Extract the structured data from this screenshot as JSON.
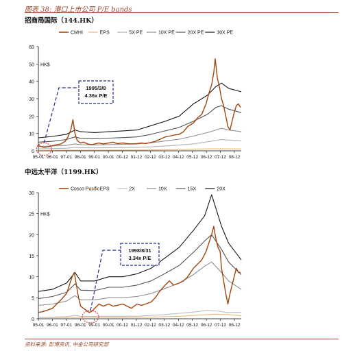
{
  "figure": {
    "title": "图表 38: 港口上市公司 P/E bands",
    "source": "资料来源: 彭博资讯, 中金公司研究部"
  },
  "chart_data": [
    {
      "type": "line",
      "heading": "招商局国际（144.HK）",
      "ylabel": "HK$",
      "ylim": [
        0,
        60
      ],
      "yticks": [
        0,
        10,
        20,
        30,
        40,
        50,
        60
      ],
      "xticks": [
        "95-01",
        "96-01",
        "97-01",
        "98-01",
        "99-01",
        "00-01",
        "00-12",
        "01-12",
        "02-12",
        "03-12",
        "04-12",
        "05-12",
        "06-12",
        "07-12",
        "08-12"
      ],
      "xrange": [
        1995.0,
        2009.4
      ],
      "legend": [
        "CMHI",
        "EPS",
        "5X PE",
        "10X PE",
        "20X PE",
        "30X PE"
      ],
      "colors": {
        "price": "#a0460f",
        "eps": "#f3b477",
        "pe5": "#b2b2b2",
        "pe10": "#8e8e8e",
        "pe20": "#525252",
        "pe30": "#161616"
      },
      "annotation": {
        "date": "1995/3/8",
        "value": "4.36x P/E"
      },
      "series": [
        {
          "name": "CMHI",
          "key": "price",
          "x": [
            1995.0,
            1995.2,
            1995.4,
            1995.6,
            1995.8,
            1996.0,
            1996.3,
            1996.6,
            1996.9,
            1997.1,
            1997.3,
            1997.45,
            1997.6,
            1997.75,
            1997.9,
            1998.0,
            1998.2,
            1998.5,
            1998.8,
            1999.0,
            1999.3,
            1999.6,
            2000.0,
            2000.3,
            2000.6,
            2001.0,
            2001.3,
            2001.6,
            2002.0,
            2002.3,
            2002.6,
            2003.0,
            2003.3,
            2003.6,
            2004.0,
            2004.3,
            2004.6,
            2005.0,
            2005.3,
            2005.6,
            2006.0,
            2006.3,
            2006.6,
            2006.9,
            2007.1,
            2007.3,
            2007.45,
            2007.55,
            2007.7,
            2007.85,
            2008.0,
            2008.15,
            2008.3,
            2008.45,
            2008.6,
            2008.75,
            2008.9,
            2009.05,
            2009.2,
            2009.35
          ],
          "values": [
            3,
            2.5,
            2,
            2.2,
            2.5,
            3,
            3.5,
            4,
            5.5,
            8,
            12,
            18,
            10,
            6,
            5,
            4.5,
            5,
            4,
            3.5,
            4,
            4.5,
            4,
            4.5,
            5,
            4.2,
            4.5,
            4.2,
            4,
            4.2,
            4.5,
            4.2,
            4.8,
            5.5,
            6.5,
            8,
            8.5,
            9,
            9.5,
            11,
            14,
            16,
            19,
            21,
            27,
            33,
            38,
            45,
            53,
            42,
            37,
            30,
            26,
            20,
            14,
            12,
            17,
            22,
            26,
            27,
            25
          ]
        },
        {
          "name": "EPS",
          "key": "eps",
          "x": [
            1995.0,
            1997.0,
            1999.0,
            2001.0,
            2003.0,
            2005.0,
            2007.0,
            2009.4
          ],
          "values": [
            0.3,
            0.4,
            0.4,
            0.45,
            0.5,
            0.7,
            1.2,
            1.1
          ]
        },
        {
          "name": "5X PE",
          "key": "pe5",
          "x": [
            1995.0,
            1996.0,
            1997.0,
            1997.6,
            1998.0,
            1999.0,
            2000.0,
            2001.0,
            2002.0,
            2003.0,
            2004.0,
            2005.0,
            2006.0,
            2007.0,
            2008.0,
            2008.5,
            2009.4
          ],
          "values": [
            1.2,
            1.3,
            1.5,
            2.0,
            1.8,
            1.7,
            1.8,
            1.9,
            2.0,
            2.3,
            2.8,
            3.3,
            4.0,
            5.2,
            6.5,
            6.2,
            5.8
          ]
        },
        {
          "name": "10X PE",
          "key": "pe10",
          "x": [
            1995.0,
            1996.0,
            1997.0,
            1997.6,
            1998.0,
            1999.0,
            2000.0,
            2001.0,
            2002.0,
            2003.0,
            2004.0,
            2005.0,
            2006.0,
            2007.0,
            2008.0,
            2008.5,
            2009.4
          ],
          "values": [
            2.5,
            2.8,
            3.2,
            4.0,
            3.6,
            3.4,
            3.6,
            3.8,
            4.0,
            4.6,
            5.7,
            6.7,
            8.5,
            10.5,
            13,
            12,
            11
          ]
        },
        {
          "name": "20X PE",
          "key": "pe20",
          "x": [
            1995.0,
            1996.0,
            1997.0,
            1997.6,
            1998.0,
            1999.0,
            2000.0,
            2001.0,
            2002.0,
            2003.0,
            2004.0,
            2005.0,
            2006.0,
            2007.0,
            2007.6,
            2008.0,
            2008.5,
            2009.4
          ],
          "values": [
            5.0,
            5.5,
            6.5,
            8.0,
            7.2,
            7.0,
            7.3,
            7.6,
            8.0,
            9.5,
            11.5,
            13.5,
            17,
            21,
            25,
            26,
            24,
            22
          ]
        },
        {
          "name": "30X PE",
          "key": "pe30",
          "x": [
            1995.0,
            1996.0,
            1997.0,
            1997.6,
            1998.0,
            1999.0,
            2000.0,
            2001.0,
            2002.0,
            2003.0,
            2004.0,
            2005.0,
            2006.0,
            2007.0,
            2007.6,
            2008.0,
            2008.5,
            2009.4
          ],
          "values": [
            7.5,
            8.3,
            9.5,
            12,
            11,
            10.5,
            11,
            11.5,
            12,
            14.5,
            17,
            20,
            27,
            32,
            37,
            39,
            36,
            34
          ]
        }
      ]
    },
    {
      "type": "line",
      "heading": "中远太平洋（1199.HK）",
      "ylabel": "HK$",
      "ylim": [
        0,
        30
      ],
      "yticks": [
        0,
        5,
        10,
        15,
        20,
        25,
        30
      ],
      "xticks": [
        "95-01",
        "96-01",
        "97-01",
        "98-01",
        "99-01",
        "00-01",
        "00-12",
        "01-12",
        "02-12",
        "03-12",
        "04-12",
        "05-12",
        "06-12",
        "07-12",
        "08-12"
      ],
      "xrange": [
        1995.0,
        2009.4
      ],
      "legend": [
        "Cosco Pacific",
        "EPS",
        "2X",
        "10X",
        "15X",
        "20X"
      ],
      "colors": {
        "price": "#a0460f",
        "eps": "#f3b477",
        "pe2": "#bdbdbd",
        "pe10": "#8e8e8e",
        "pe15": "#545454",
        "pe20": "#161616"
      },
      "annotation": {
        "date": "1998/8/31",
        "value": "3.34x P/E"
      },
      "series": [
        {
          "name": "Cosco Pacific",
          "key": "price",
          "x": [
            1995.0,
            1995.3,
            1995.6,
            1996.0,
            1996.3,
            1996.6,
            1997.0,
            1997.2,
            1997.4,
            1997.55,
            1997.7,
            1997.85,
            1998.0,
            1998.2,
            1998.4,
            1998.6,
            1998.8,
            1999.0,
            1999.3,
            1999.6,
            2000.0,
            2000.3,
            2000.6,
            2001.0,
            2001.3,
            2001.6,
            2002.0,
            2002.3,
            2002.6,
            2003.0,
            2003.3,
            2003.6,
            2004.0,
            2004.3,
            2004.6,
            2005.0,
            2005.3,
            2005.6,
            2006.0,
            2006.3,
            2006.6,
            2006.9,
            2007.1,
            2007.3,
            2007.45,
            2007.6,
            2007.75,
            2007.9,
            2008.0,
            2008.15,
            2008.3,
            2008.45,
            2008.6,
            2008.75,
            2008.9,
            2009.05,
            2009.2,
            2009.35
          ],
          "values": [
            1.5,
            1.7,
            2.0,
            2.5,
            3.5,
            4.5,
            6,
            8,
            10,
            11,
            8,
            5,
            3,
            2.5,
            2,
            1.5,
            1.8,
            2.5,
            3.5,
            3,
            3.5,
            3.0,
            3.2,
            3.5,
            3.0,
            2.5,
            3.5,
            3.2,
            3.5,
            4,
            5,
            6.5,
            8,
            9,
            8,
            8.5,
            9,
            10,
            12,
            13,
            14,
            16,
            18,
            20,
            22,
            19,
            17,
            16,
            12,
            9,
            6,
            3.5,
            6,
            8,
            10,
            12,
            11,
            11
          ]
        },
        {
          "name": "EPS",
          "key": "eps",
          "x": [
            1995.0,
            1997.0,
            1999.0,
            2001.0,
            2003.0,
            2005.0,
            2006.5,
            2007.5,
            2008.5,
            2009.4
          ],
          "values": [
            0.3,
            0.35,
            0.35,
            0.35,
            0.4,
            0.6,
            0.9,
            1.1,
            1.0,
            0.7
          ]
        },
        {
          "name": "2X",
          "key": "pe2",
          "x": [
            1995.0,
            1996.0,
            1997.0,
            1997.6,
            1998.0,
            1999.0,
            2000.0,
            2001.0,
            2002.0,
            2003.0,
            2004.0,
            2005.0,
            2006.0,
            2007.0,
            2007.8,
            2008.4,
            2009.4
          ],
          "values": [
            0.3,
            0.4,
            0.5,
            0.8,
            0.6,
            0.55,
            0.6,
            0.6,
            0.6,
            0.8,
            1.0,
            1.3,
            1.6,
            2.0,
            1.8,
            1.5,
            1.5
          ]
        },
        {
          "name": "10X",
          "key": "pe10",
          "x": [
            1995.0,
            1996.0,
            1997.0,
            1997.6,
            1998.0,
            1999.0,
            2000.0,
            2001.0,
            2002.0,
            2003.0,
            2004.0,
            2005.0,
            2006.0,
            2006.8,
            2007.3,
            2008.0,
            2008.5,
            2009.4
          ],
          "values": [
            3.2,
            3.5,
            4.2,
            5.5,
            4.5,
            4.5,
            5.0,
            5.0,
            5.3,
            6.0,
            7.2,
            8.5,
            10.5,
            12.5,
            13.5,
            11,
            9,
            7
          ]
        },
        {
          "name": "15X",
          "key": "pe15",
          "x": [
            1995.0,
            1996.0,
            1997.0,
            1997.6,
            1998.0,
            1999.0,
            2000.0,
            2001.0,
            2002.0,
            2003.0,
            2004.0,
            2005.0,
            2006.0,
            2006.8,
            2007.3,
            2008.0,
            2008.5,
            2009.4
          ],
          "values": [
            4.8,
            5.3,
            6.3,
            8.3,
            6.8,
            6.7,
            7.5,
            7.5,
            8.0,
            9.0,
            10.8,
            12.7,
            15.8,
            18.5,
            20,
            16.5,
            13.5,
            10.5
          ]
        },
        {
          "name": "20X",
          "key": "pe20",
          "x": [
            1995.0,
            1996.0,
            1997.0,
            1997.6,
            1998.0,
            1999.0,
            2000.0,
            2001.0,
            2002.0,
            2003.0,
            2004.0,
            2005.0,
            2006.0,
            2006.8,
            2007.3,
            2008.0,
            2008.5,
            2009.4
          ],
          "values": [
            6.5,
            7.0,
            8.5,
            11.0,
            9.0,
            9.0,
            10.0,
            10.0,
            10.7,
            12.0,
            14.5,
            17.0,
            21.0,
            24.5,
            29.5,
            22.0,
            18.0,
            14.0
          ]
        }
      ]
    }
  ]
}
